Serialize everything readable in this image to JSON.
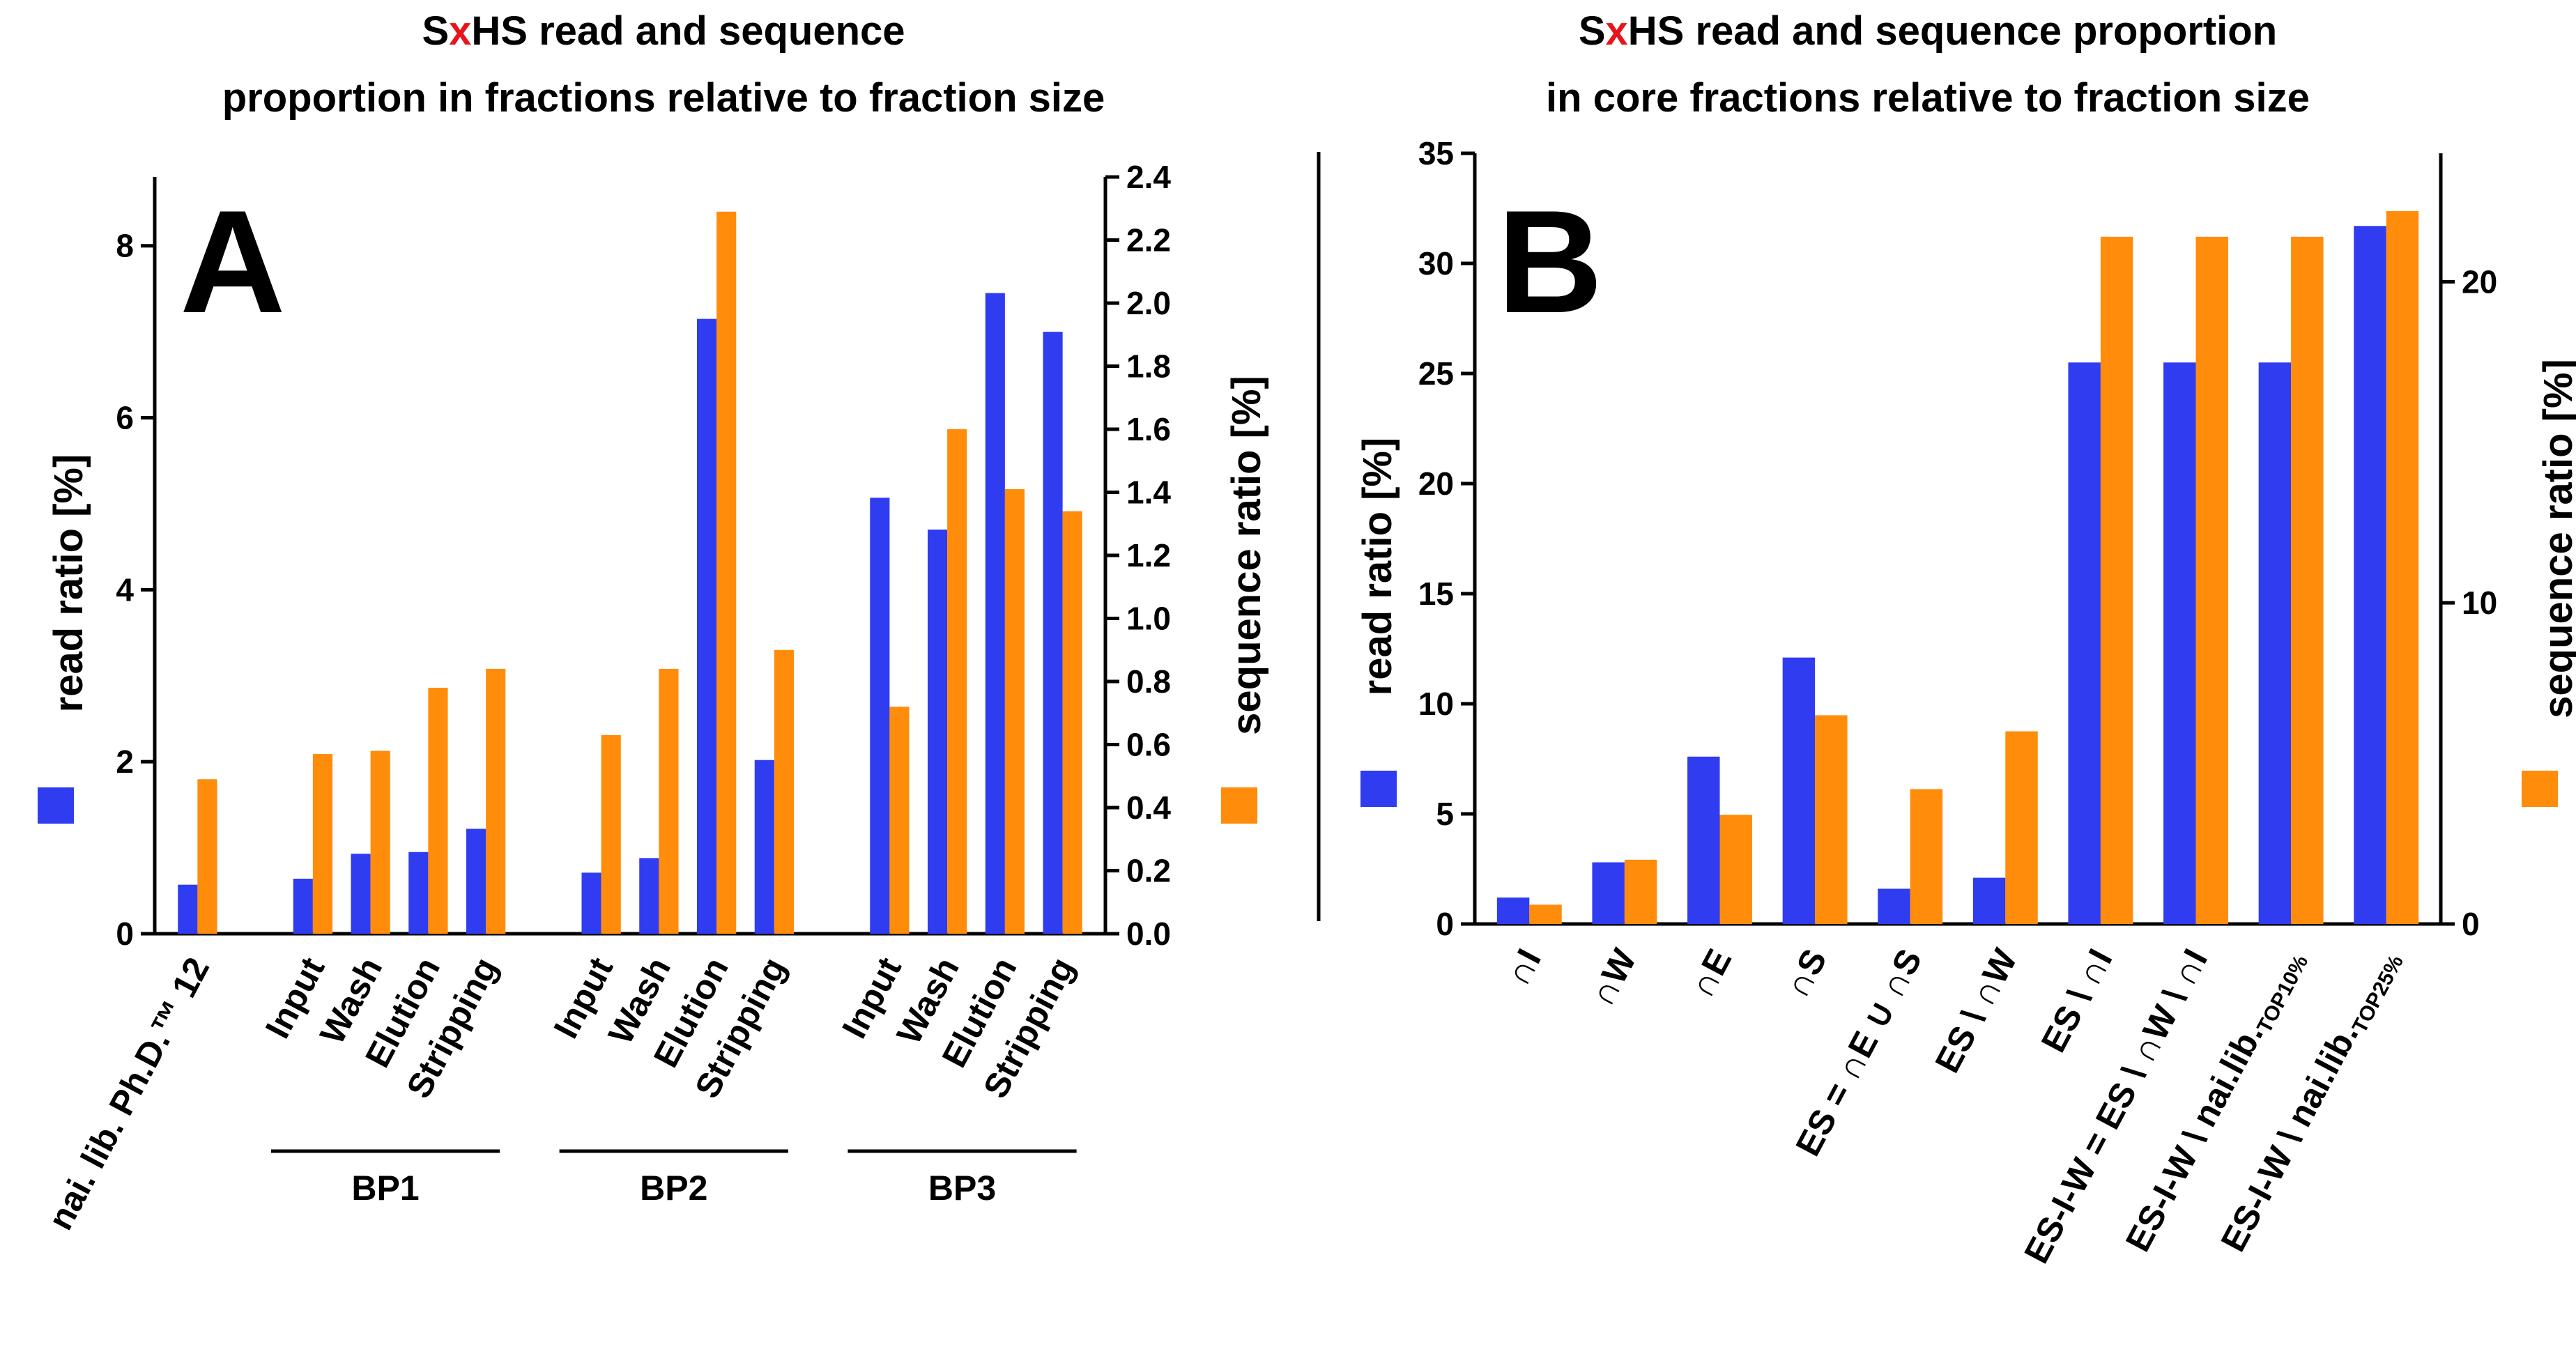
{
  "colors": {
    "read": "#2f3cf0",
    "sequence": "#ff8c0a",
    "accent_x": "#e8141c"
  },
  "chart_data": [
    {
      "panel": "A",
      "type": "bar",
      "title_lines": [
        [
          "S",
          "x",
          "HS read and sequence"
        ],
        [
          "proportion in fractions relative to fraction size"
        ]
      ],
      "ylabel_left": "read ratio [%]",
      "ylabel_right": "sequence ratio [%]",
      "ylim_left": [
        0,
        8.8
      ],
      "ylim_right": [
        0,
        2.4
      ],
      "yticks_left": [
        "0",
        "2",
        "4",
        "6",
        "8"
      ],
      "yticks_right": [
        "0.0",
        "0.2",
        "0.4",
        "0.6",
        "0.8",
        "1.0",
        "1.2",
        "1.4",
        "1.6",
        "1.8",
        "2.0",
        "2.2",
        "2.4"
      ],
      "categories": [
        "nai. lib. Ph.D.™ 12",
        "Input",
        "Wash",
        "Elution",
        "Stripping",
        "Input",
        "Wash",
        "Elution",
        "Stripping",
        "Input",
        "Wash",
        "Elution",
        "Stripping"
      ],
      "category_slots": [
        0,
        2,
        3,
        4,
        5,
        7,
        8,
        9,
        10,
        12,
        13,
        14,
        15
      ],
      "groups": [
        {
          "label": "BP1",
          "from": 1,
          "to": 4
        },
        {
          "label": "BP2",
          "from": 5,
          "to": 8
        },
        {
          "label": "BP3",
          "from": 9,
          "to": 12
        }
      ],
      "series": [
        {
          "name": "read ratio",
          "axis": "left",
          "values": [
            0.57,
            0.64,
            0.93,
            0.95,
            1.22,
            0.71,
            0.88,
            7.15,
            2.02,
            5.07,
            4.7,
            7.45,
            7.0
          ]
        },
        {
          "name": "sequence ratio",
          "axis": "right",
          "values": [
            0.49,
            0.57,
            0.58,
            0.78,
            0.84,
            0.63,
            0.84,
            2.29,
            0.9,
            0.72,
            1.6,
            1.41,
            1.34
          ]
        }
      ]
    },
    {
      "panel": "B",
      "type": "bar",
      "title_lines": [
        [
          "S",
          "x",
          "HS read and sequence proportion"
        ],
        [
          "in core fractions relative to fraction size"
        ]
      ],
      "ylabel_left": "read ratio [%]",
      "ylabel_right": "sequence ratio [%]",
      "ylim_left": [
        0,
        35
      ],
      "ylim_right": [
        0,
        24
      ],
      "yticks_left": [
        "0",
        "5",
        "10",
        "15",
        "20",
        "25",
        "30",
        "35"
      ],
      "yticks_right": [
        "0",
        "10",
        "20"
      ],
      "categories": [
        {
          "text": "∩I"
        },
        {
          "text": "∩W"
        },
        {
          "text": "∩E"
        },
        {
          "text": "∩S"
        },
        {
          "text": "ES = ∩E ∪ ∩S"
        },
        {
          "text": "ES \\ ∩W"
        },
        {
          "text": "ES \\ ∩I"
        },
        {
          "text": "ES-I-W = ES \\ ∩W \\ ∩I"
        },
        {
          "text": "ES-I-W \\ nai.lib.",
          "sub": "TOP10%"
        },
        {
          "text": "ES-I-W \\ nai.lib.",
          "sub": "TOP25%"
        }
      ],
      "series": [
        {
          "name": "read ratio",
          "axis": "left",
          "values": [
            1.2,
            2.8,
            7.6,
            12.1,
            1.6,
            2.1,
            25.5,
            25.5,
            25.5,
            31.7
          ]
        },
        {
          "name": "sequence ratio",
          "axis": "right",
          "values": [
            0.6,
            2.0,
            3.4,
            6.5,
            4.2,
            6.0,
            21.4,
            21.4,
            21.4,
            22.2
          ]
        }
      ]
    }
  ]
}
